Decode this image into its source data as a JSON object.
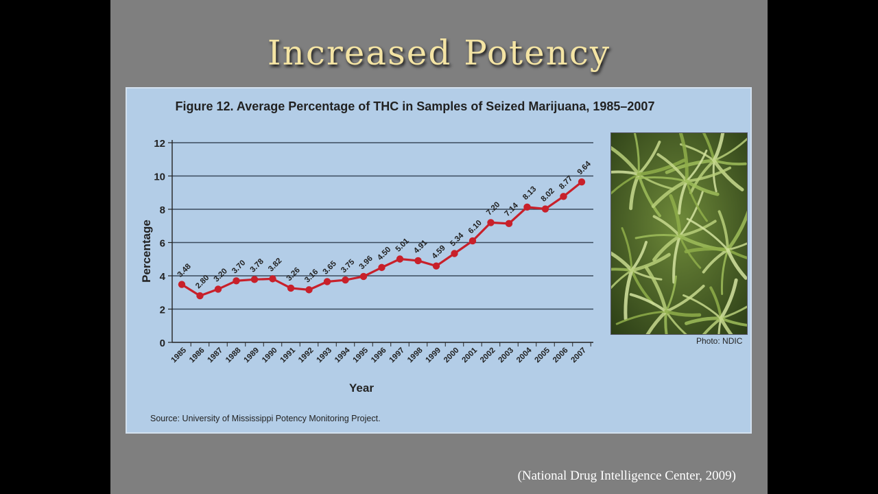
{
  "slide": {
    "title": "Increased Potency",
    "citation": "(National Drug Intelligence Center, 2009)"
  },
  "figure": {
    "photo_credit": "Photo: NDIC",
    "photo_alt": "cannabis plant leaves"
  },
  "chart_data": {
    "type": "line",
    "title": "Figure 12. Average Percentage of THC in Samples of Seized Marijuana, 1985–2007",
    "xlabel": "Year",
    "ylabel": "Percentage",
    "ylim": [
      0,
      12
    ],
    "yticks": [
      0,
      2,
      4,
      6,
      8,
      10,
      12
    ],
    "grid": true,
    "source": "Source: University of Mississippi Potency Monitoring Project.",
    "categories": [
      "1985",
      "1986",
      "1987",
      "1988",
      "1989",
      "1990",
      "1991",
      "1992",
      "1993",
      "1994",
      "1995",
      "1996",
      "1997",
      "1998",
      "1999",
      "2000",
      "2001",
      "2002",
      "2003",
      "2004",
      "2005",
      "2006",
      "2007"
    ],
    "values": [
      3.48,
      2.8,
      3.2,
      3.7,
      3.78,
      3.82,
      3.26,
      3.16,
      3.65,
      3.75,
      3.96,
      4.5,
      5.01,
      4.91,
      4.59,
      5.34,
      6.1,
      7.2,
      7.14,
      8.13,
      8.02,
      8.77,
      9.64
    ],
    "value_labels": [
      "3.48",
      "2.80",
      "3.20",
      "3.70",
      "3.78",
      "3.82",
      "3.26",
      "3.16",
      "3.65",
      "3.75",
      "3.96",
      "4.50",
      "5.01",
      "4.91",
      "4.59",
      "5.34",
      "6.10",
      "7.20",
      "7.14",
      "8.13",
      "8.02",
      "8.77",
      "9.64"
    ],
    "line_color": "#c8202a",
    "grid_color": "#3a4a5c"
  }
}
